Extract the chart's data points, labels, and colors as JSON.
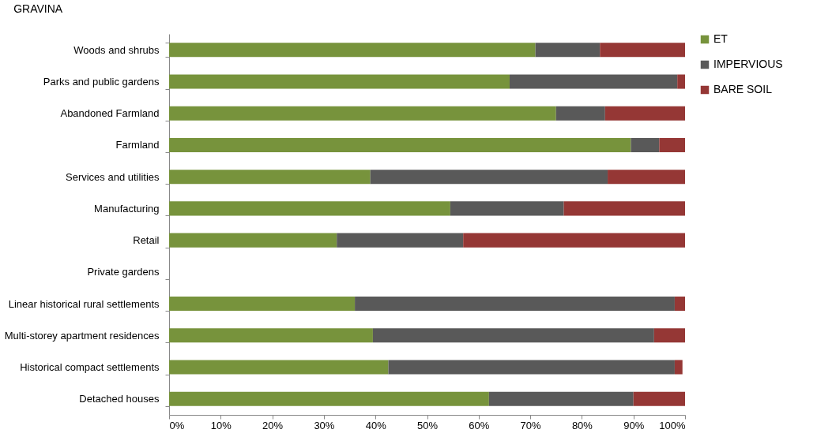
{
  "chart_data": {
    "type": "bar",
    "orientation": "horizontal",
    "stacked": true,
    "title": "GRAVINA",
    "categories": [
      "Woods and shrubs",
      "Parks and public gardens",
      "Abandoned Farmland",
      "Farmland",
      "Services and utilities",
      "Manufacturing",
      "Retail",
      "Private gardens",
      "Linear historical rural settlements",
      "Multi-storey apartment residences",
      "Historical compact settlements",
      "Detached houses"
    ],
    "series": [
      {
        "name": "ET",
        "color": "#77933c",
        "values": [
          71,
          66,
          75,
          89.5,
          39,
          54.5,
          32.5,
          null,
          36,
          39.5,
          42.5,
          62
        ]
      },
      {
        "name": "IMPERVIOUS",
        "color": "#595959",
        "values": [
          12.5,
          32.5,
          9.5,
          5.5,
          46,
          22,
          24.5,
          null,
          62,
          54.5,
          55.5,
          28
        ]
      },
      {
        "name": "BARE SOIL",
        "color": "#953735",
        "values": [
          16.5,
          1.5,
          15.5,
          5,
          15,
          23.5,
          43,
          null,
          2,
          6,
          1.5,
          10
        ]
      }
    ],
    "xlim": [
      0,
      100
    ],
    "xticks": [
      {
        "value": 0,
        "label": "0%"
      },
      {
        "value": 10,
        "label": "10%"
      },
      {
        "value": 20,
        "label": "20%"
      },
      {
        "value": 30,
        "label": "30%"
      },
      {
        "value": 40,
        "label": "40%"
      },
      {
        "value": 50,
        "label": "50%"
      },
      {
        "value": 60,
        "label": "60%"
      },
      {
        "value": 70,
        "label": "70%"
      },
      {
        "value": 80,
        "label": "80%"
      },
      {
        "value": 90,
        "label": "90%"
      },
      {
        "value": 100,
        "label": "100%"
      }
    ],
    "grid": false,
    "legend": "right"
  }
}
